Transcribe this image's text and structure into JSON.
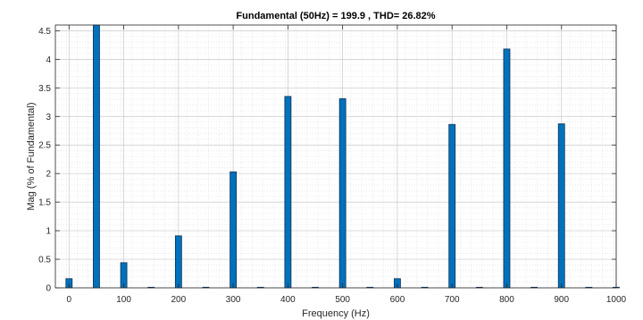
{
  "chart_data": {
    "type": "bar",
    "title": "Fundamental (50Hz) = 199.9 , THD= 26.82%",
    "xlabel": "Frequency (Hz)",
    "ylabel": "Mag (% of Fundamental)",
    "xlim": [
      -25,
      1000
    ],
    "ylim": [
      0,
      4.6
    ],
    "xticks": [
      0,
      100,
      200,
      300,
      400,
      500,
      600,
      700,
      800,
      900,
      1000
    ],
    "xtick_labels": [
      "0",
      "100",
      "200",
      "300",
      "400",
      "500",
      "600",
      "700",
      "800",
      "900",
      "1000"
    ],
    "yticks": [
      0,
      0.5,
      1,
      1.5,
      2,
      2.5,
      3,
      3.5,
      4,
      4.5
    ],
    "ytick_labels": [
      "0",
      "0.5",
      "1",
      "1.5",
      "2",
      "2.5",
      "3",
      "3.5",
      "4",
      "4.5"
    ],
    "grid": true,
    "minor_grid": true,
    "bar_color": "#0072BD",
    "bar_edge_color": "#0b2f52",
    "x": [
      0,
      50,
      100,
      150,
      200,
      250,
      300,
      350,
      400,
      450,
      500,
      550,
      600,
      650,
      700,
      750,
      800,
      850,
      900,
      950,
      1000
    ],
    "values": [
      0.16,
      4.6,
      0.44,
      0.01,
      0.91,
      0.01,
      2.03,
      0.01,
      3.35,
      0.01,
      3.31,
      0.01,
      0.16,
      0.01,
      2.86,
      0.01,
      4.18,
      0.01,
      2.87,
      0.01,
      0.01
    ]
  }
}
